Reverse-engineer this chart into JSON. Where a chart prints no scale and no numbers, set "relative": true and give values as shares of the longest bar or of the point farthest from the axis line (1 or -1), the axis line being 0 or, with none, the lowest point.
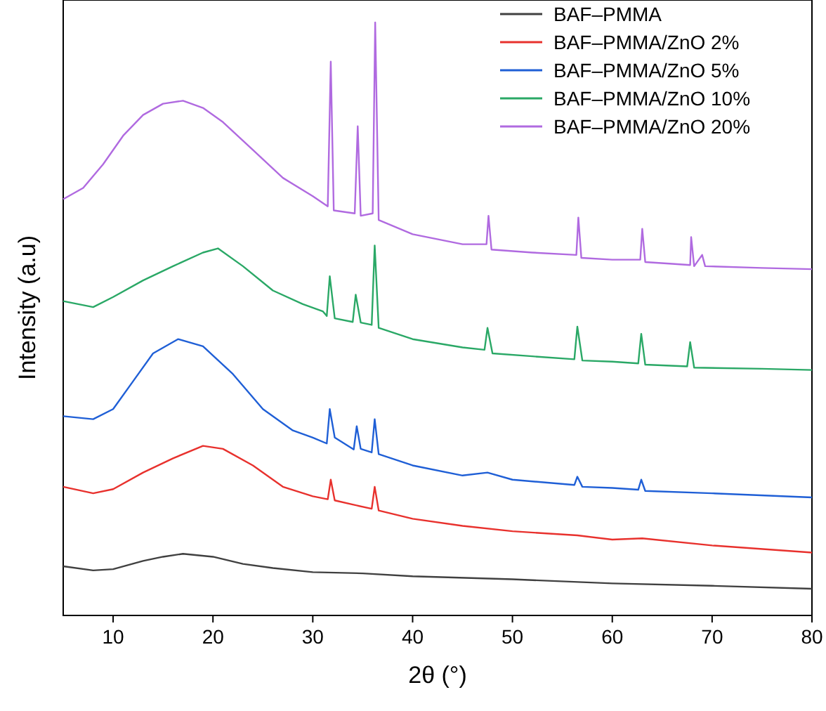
{
  "chart_data": {
    "type": "line",
    "relative": true,
    "xlabel": "2θ (°)",
    "ylabel": "Intensity (a.u)",
    "xlim": [
      5,
      80
    ],
    "xticks": [
      10,
      20,
      30,
      40,
      50,
      60,
      70,
      80
    ],
    "tick_labels": "x",
    "legend": "top right",
    "line_style": "solid",
    "series": [
      {
        "name": "BAF–PMMA",
        "color": "#404040",
        "x": [
          5,
          8,
          10,
          13,
          15,
          17,
          20,
          23,
          26,
          30,
          35,
          40,
          50,
          60,
          70,
          80
        ],
        "values": [
          0.083,
          0.076,
          0.078,
          0.092,
          0.099,
          0.104,
          0.099,
          0.087,
          0.08,
          0.073,
          0.071,
          0.066,
          0.061,
          0.054,
          0.05,
          0.045
        ]
      },
      {
        "name": "BAF–PMMA/ZnO 2%",
        "color": "#e8312d",
        "x": [
          5,
          8,
          10,
          13,
          16,
          19,
          21,
          24,
          27,
          30,
          31.5,
          31.8,
          32.2,
          34,
          35.9,
          36.2,
          36.6,
          40,
          45,
          50,
          56.5,
          60,
          63,
          70,
          80
        ],
        "values": [
          0.217,
          0.206,
          0.213,
          0.241,
          0.265,
          0.286,
          0.281,
          0.253,
          0.217,
          0.201,
          0.196,
          0.229,
          0.194,
          0.187,
          0.18,
          0.217,
          0.177,
          0.163,
          0.151,
          0.142,
          0.135,
          0.128,
          0.13,
          0.118,
          0.106
        ]
      },
      {
        "name": "BAF–PMMA/ZnO 5%",
        "color": "#1f5fd6",
        "x": [
          5,
          8,
          10,
          12,
          14,
          16.5,
          19,
          22,
          25,
          28,
          30,
          31.4,
          31.7,
          32.2,
          34.1,
          34.4,
          34.8,
          35.9,
          36.2,
          36.6,
          40,
          45,
          47.5,
          50,
          56.2,
          56.5,
          57,
          60,
          62.6,
          62.9,
          63.3,
          70,
          80
        ],
        "values": [
          0.336,
          0.331,
          0.348,
          0.395,
          0.442,
          0.466,
          0.454,
          0.407,
          0.348,
          0.312,
          0.3,
          0.29,
          0.348,
          0.3,
          0.28,
          0.319,
          0.281,
          0.275,
          0.331,
          0.272,
          0.253,
          0.236,
          0.241,
          0.229,
          0.22,
          0.234,
          0.217,
          0.215,
          0.212,
          0.229,
          0.21,
          0.206,
          0.199
        ]
      },
      {
        "name": "BAF–PMMA/ZnO 10%",
        "color": "#2aa866",
        "x": [
          5,
          8,
          10,
          13,
          16,
          19,
          20.5,
          23,
          26,
          29,
          31,
          31.4,
          31.7,
          32.2,
          34.0,
          34.3,
          34.8,
          35.9,
          36.2,
          36.6,
          40,
          45,
          47.2,
          47.5,
          48,
          52,
          56.2,
          56.5,
          57,
          60,
          62.6,
          62.9,
          63.3,
          67.5,
          67.8,
          68.2,
          75,
          80
        ],
        "values": [
          0.53,
          0.52,
          0.537,
          0.565,
          0.589,
          0.612,
          0.619,
          0.589,
          0.548,
          0.525,
          0.513,
          0.505,
          0.572,
          0.501,
          0.495,
          0.541,
          0.494,
          0.49,
          0.624,
          0.485,
          0.466,
          0.452,
          0.448,
          0.485,
          0.442,
          0.437,
          0.432,
          0.487,
          0.43,
          0.428,
          0.425,
          0.475,
          0.423,
          0.42,
          0.461,
          0.418,
          0.416,
          0.414
        ]
      },
      {
        "name": "BAF–PMMA/ZnO 20%",
        "color": "#b06ae0",
        "x": [
          5,
          7,
          9,
          11,
          13,
          15,
          17,
          19,
          21,
          24,
          27,
          30,
          31.5,
          31.8,
          32.1,
          34.2,
          34.5,
          34.8,
          36,
          36.25,
          36.6,
          40,
          45,
          47.4,
          47.6,
          47.9,
          52,
          56.4,
          56.6,
          56.9,
          60,
          62.8,
          63,
          63.3,
          66,
          67.8,
          67.9,
          68.2,
          69,
          69.3,
          75,
          80
        ],
        "values": [
          0.702,
          0.721,
          0.761,
          0.809,
          0.844,
          0.863,
          0.868,
          0.856,
          0.832,
          0.785,
          0.738,
          0.707,
          0.69,
          0.934,
          0.683,
          0.678,
          0.825,
          0.674,
          0.678,
          1,
          0.667,
          0.643,
          0.626,
          0.626,
          0.674,
          0.617,
          0.612,
          0.608,
          0.671,
          0.603,
          0.6,
          0.6,
          0.652,
          0.596,
          0.593,
          0.591,
          0.638,
          0.589,
          0.608,
          0.589,
          0.586,
          0.584
        ]
      }
    ]
  }
}
